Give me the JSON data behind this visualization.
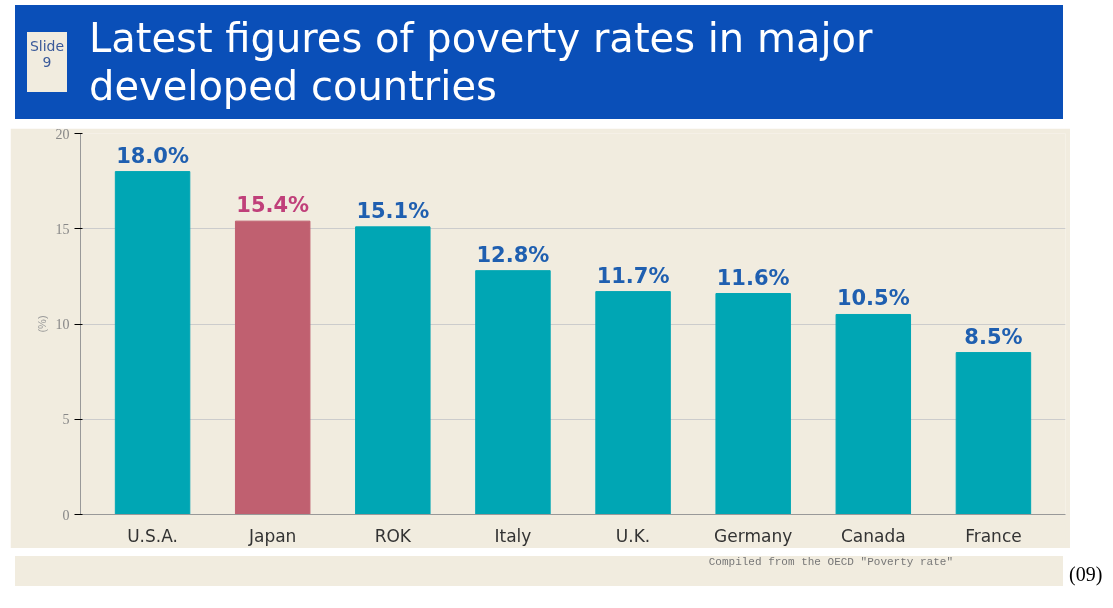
{
  "chart_data": {
    "type": "bar",
    "title": "Latest figures of poverty rates in major developed countries",
    "ylabel": "(%)",
    "categories": [
      "U.S.A.",
      "Japan",
      "ROK",
      "Italy",
      "U.K.",
      "Germany",
      "Canada",
      "France"
    ],
    "values": [
      18.0,
      15.4,
      15.1,
      12.8,
      11.7,
      11.6,
      10.5,
      8.5
    ],
    "colors": [
      "#00a6b4",
      "#c06070",
      "#00a6b4",
      "#00a6b4",
      "#00a6b4",
      "#00a6b4",
      "#00a6b4",
      "#00a6b4"
    ],
    "value_labels": [
      "18.0%",
      "15.4%",
      "15.1%",
      "12.8%",
      "11.7%",
      "11.6%",
      "10.5%",
      "8.5%"
    ],
    "ylim": [
      0,
      20
    ],
    "yticks": [
      0,
      5,
      10,
      15,
      20
    ],
    "grid": "y",
    "annotations": [
      "Slide 9",
      "Compiled from the OECD \"Poverty rate\"",
      "(09)"
    ]
  }
}
